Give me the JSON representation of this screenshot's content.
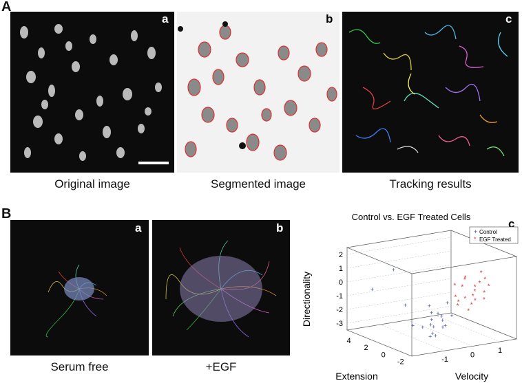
{
  "panelA": {
    "letter": "A",
    "images": [
      {
        "letter": "a",
        "caption": "Original image"
      },
      {
        "letter": "b",
        "caption": "Segmented  image"
      },
      {
        "letter": "c",
        "caption": "Tracking results"
      }
    ]
  },
  "panelB": {
    "letter": "B",
    "images": [
      {
        "letter": "a",
        "caption": "Serum free"
      },
      {
        "letter": "b",
        "caption": "+EGF"
      }
    ],
    "plot_letter": "c"
  },
  "chart_data": {
    "type": "scatter",
    "title": "Control vs. EGF Treated Cells",
    "xlabel": "Velocity",
    "ylabel": "Extension",
    "zlabel": "Directionality",
    "xticks": [
      "-1",
      "0",
      "1"
    ],
    "yticks": [
      "4",
      "2",
      "0",
      "-2"
    ],
    "zticks": [
      "2",
      "1",
      "0",
      "-1",
      "-2",
      "-3"
    ],
    "legend_position": "top-right",
    "series": [
      {
        "name": "Control",
        "marker": "+",
        "color": "#3f4fb0",
        "points_xyz": [
          [
            -1.2,
            -1.5,
            -1.8
          ],
          [
            -1.0,
            -1.2,
            -2.1
          ],
          [
            -0.9,
            -1.8,
            -1.2
          ],
          [
            -1.1,
            -1.4,
            -2.5
          ],
          [
            -0.8,
            -1.6,
            -1.6
          ],
          [
            -1.3,
            -1.9,
            -0.8
          ],
          [
            -0.7,
            -1.3,
            -2.2
          ],
          [
            -1.0,
            -1.7,
            -1.0
          ],
          [
            -0.9,
            -1.1,
            -2.8
          ],
          [
            -1.2,
            -1.6,
            -1.4
          ],
          [
            -0.6,
            -1.5,
            -0.4
          ],
          [
            -1.4,
            -1.2,
            -2.0
          ],
          [
            -0.8,
            -1.9,
            -1.9
          ],
          [
            -1.1,
            -1.0,
            -0.6
          ],
          [
            -0.5,
            -1.7,
            -1.3
          ],
          [
            -1.5,
            0.5,
            -0.8
          ],
          [
            -1.0,
            1.2,
            -2.6
          ],
          [
            -1.3,
            2.5,
            1.2
          ],
          [
            -1.6,
            4.0,
            -0.5
          ],
          [
            -0.9,
            -0.5,
            -3.0
          ]
        ]
      },
      {
        "name": "EGF Treated",
        "marker": "*",
        "color": "#d23a3a",
        "points_xyz": [
          [
            0.2,
            -1.0,
            -0.5
          ],
          [
            0.5,
            -1.2,
            0.3
          ],
          [
            0.0,
            -0.8,
            -1.0
          ],
          [
            0.8,
            -1.4,
            0.8
          ],
          [
            0.3,
            -1.6,
            -0.2
          ],
          [
            -0.2,
            -1.1,
            0.6
          ],
          [
            0.6,
            -0.9,
            -0.8
          ],
          [
            0.1,
            -1.3,
            1.0
          ],
          [
            0.9,
            -1.0,
            -0.3
          ],
          [
            0.4,
            -1.5,
            0.1
          ],
          [
            -0.1,
            -1.2,
            -0.6
          ],
          [
            0.7,
            -1.1,
            0.5
          ],
          [
            0.2,
            -1.4,
            -1.3
          ],
          [
            1.0,
            -1.2,
            0.2
          ],
          [
            0.3,
            -0.7,
            0.9
          ],
          [
            -0.3,
            -1.5,
            -0.1
          ],
          [
            0.6,
            -1.6,
            1.4
          ],
          [
            0.5,
            -0.8,
            -1.1
          ],
          [
            0.1,
            -1.0,
            0.4
          ],
          [
            0.8,
            -1.3,
            -0.7
          ]
        ]
      }
    ],
    "colors": {
      "control": "#3f4fb0",
      "egf": "#d23a3a"
    }
  }
}
